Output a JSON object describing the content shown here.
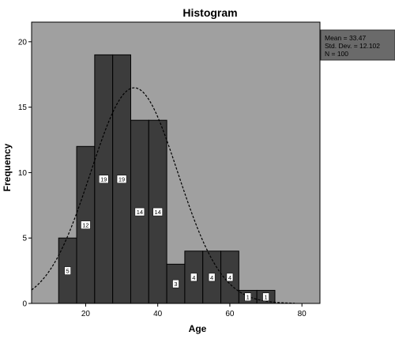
{
  "chart_data": {
    "type": "bar",
    "title": "Histogram",
    "xlabel": "Age",
    "ylabel": "Frequency",
    "xlim": [
      5,
      85
    ],
    "ylim": [
      0,
      21.5
    ],
    "x_ticks": [
      20,
      40,
      60,
      80
    ],
    "y_ticks": [
      0,
      5,
      10,
      15,
      20
    ],
    "bin_width": 5,
    "bins": [
      {
        "start": 12.5,
        "end": 17.5,
        "count": 5
      },
      {
        "start": 17.5,
        "end": 22.5,
        "count": 12
      },
      {
        "start": 22.5,
        "end": 27.5,
        "count": 19
      },
      {
        "start": 27.5,
        "end": 32.5,
        "count": 19
      },
      {
        "start": 32.5,
        "end": 37.5,
        "count": 14
      },
      {
        "start": 37.5,
        "end": 42.5,
        "count": 14
      },
      {
        "start": 42.5,
        "end": 47.5,
        "count": 3
      },
      {
        "start": 47.5,
        "end": 52.5,
        "count": 4
      },
      {
        "start": 52.5,
        "end": 57.5,
        "count": 4
      },
      {
        "start": 57.5,
        "end": 62.5,
        "count": 4
      },
      {
        "start": 62.5,
        "end": 67.5,
        "count": 1
      },
      {
        "start": 67.5,
        "end": 72.5,
        "count": 1
      }
    ],
    "normal_curve": {
      "mean": 33.47,
      "sd": 12.102,
      "n": 100,
      "style": "dashed"
    },
    "stats_box": {
      "lines": [
        "Mean = 33.47",
        "Std. Dev. = 12.102",
        "N = 100"
      ],
      "placement": "right"
    },
    "colors": {
      "plot_background": "#a0a0a0",
      "bar_fill": "#3c3c3c",
      "bar_stroke": "#000000",
      "curve": "#000000",
      "stats_box_fill": "#6a6a6a",
      "label_box": "#ffffff"
    },
    "grid": false,
    "data_labels": true
  }
}
